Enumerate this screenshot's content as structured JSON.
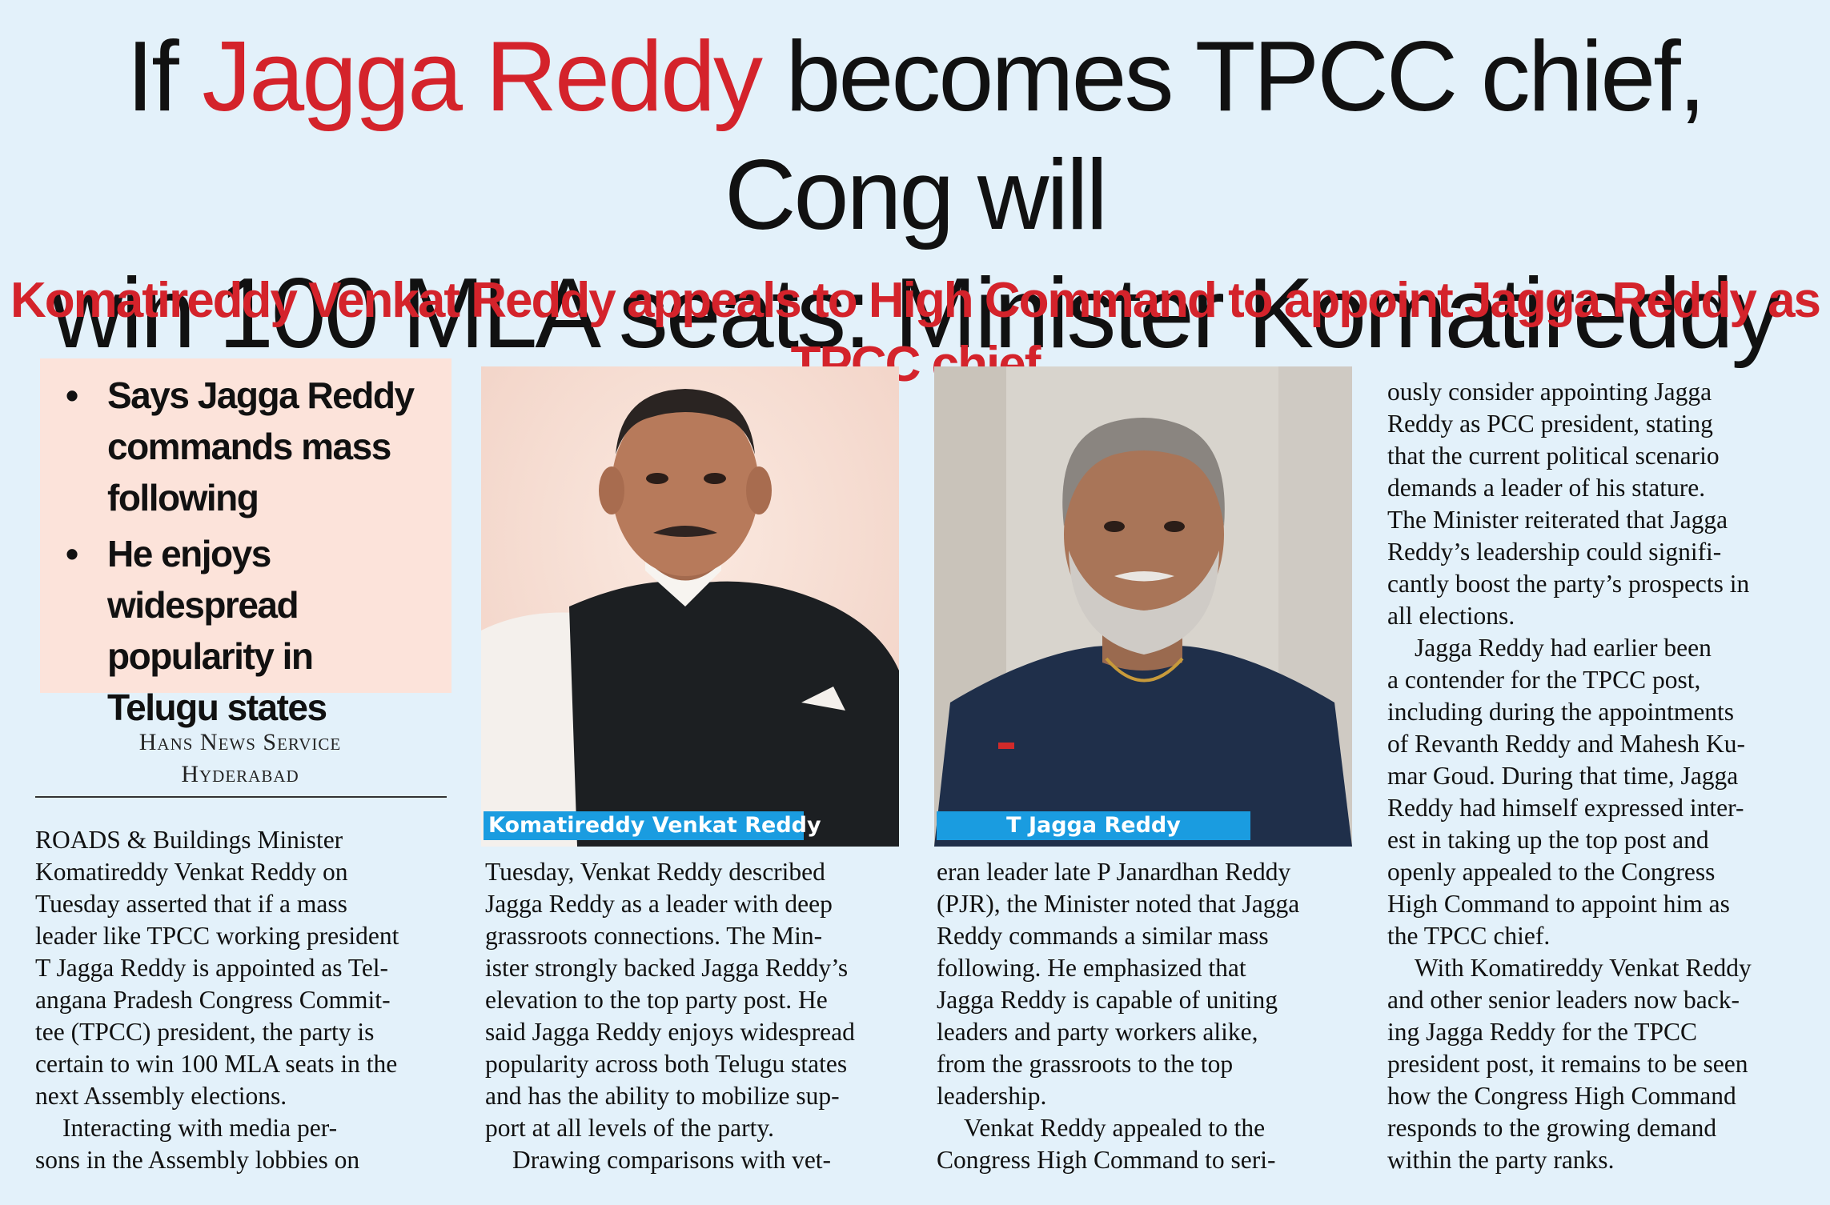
{
  "headline": {
    "line1_pre": "If ",
    "line1_red": "Jagga Reddy",
    "line1_post": " becomes TPCC chief, Cong will",
    "line2": "win 100 MLA seats: Minister Komatireddy"
  },
  "subhead": "Komatireddy Venkat Reddy appeals to High Command to appoint Jagga Reddy as TPCC chief",
  "highlights": [
    {
      "bullet": "•",
      "lines": [
        "Says Jagga Reddy",
        "commands mass",
        "following"
      ]
    },
    {
      "bullet": "•",
      "lines": [
        "He enjoys widespread",
        "popularity in",
        "Telugu states"
      ]
    }
  ],
  "byline": {
    "agency": "Hans News Service",
    "city": "Hyderabad"
  },
  "captions": {
    "photo1": "Komatireddy Venkat Reddy",
    "photo2": "T Jagga Reddy"
  },
  "columns": {
    "col1": [
      "ROADS & Buildings Minister",
      "Komatireddy Venkat Reddy on",
      "Tuesday asserted that if a mass",
      "leader like TPCC working president",
      "T Jagga Reddy is appointed as Tel-",
      "angana Pradesh Congress Commit-",
      "tee (TPCC) president, the party is",
      "certain to win 100 MLA seats in the",
      "next Assembly elections.",
      "Interacting with media per-",
      "sons in the Assembly lobbies on"
    ],
    "col2": [
      "Tuesday, Venkat Reddy described",
      "Jagga Reddy as a leader with deep",
      "grassroots connections. The Min-",
      "ister strongly backed Jagga Reddy’s",
      "elevation to the top party post. He",
      "said Jagga Reddy enjoys widespread",
      "popularity across both Telugu states",
      "and has the ability to mobilize sup-",
      "port at all levels of the party.",
      "Drawing comparisons with vet-"
    ],
    "col3": [
      "eran leader late P Janardhan Reddy",
      "(PJR), the Minister noted that Jagga",
      "Reddy commands a similar mass",
      "following. He emphasized that",
      "Jagga Reddy is capable of uniting",
      "leaders and party workers alike,",
      "from the grassroots to the top",
      "leadership.",
      "Venkat Reddy appealed to the",
      "Congress High Command to seri-"
    ],
    "col4": [
      "ously consider appointing Jagga",
      "Reddy as PCC president, stating",
      "that the current political scenario",
      "demands a leader of his stature.",
      "The Minister reiterated that Jagga",
      "Reddy’s leadership could signifi-",
      "cantly boost the party’s prospects in",
      "all elections.",
      "Jagga Reddy had earlier been",
      "a contender for the TPCC post,",
      "including during the appointments",
      "of Revanth Reddy and Mahesh Ku-",
      "mar Goud. During that time, Jagga",
      "Reddy had himself expressed inter-",
      "est in taking up the top post and",
      "openly appealed to the Congress",
      "High Command to appoint him as",
      "the TPCC chief.",
      "With Komatireddy Venkat Reddy",
      "and other senior leaders now back-",
      "ing Jagga Reddy for the TPCC",
      "president post, it remains to be seen",
      "how the Congress High Command",
      "responds to the growing demand",
      "within the party ranks."
    ]
  },
  "colors": {
    "background": "#e3f1fa",
    "accent_red": "#d4232b",
    "highlight_box": "#fce3da",
    "caption_blue": "#1a9ce0"
  }
}
